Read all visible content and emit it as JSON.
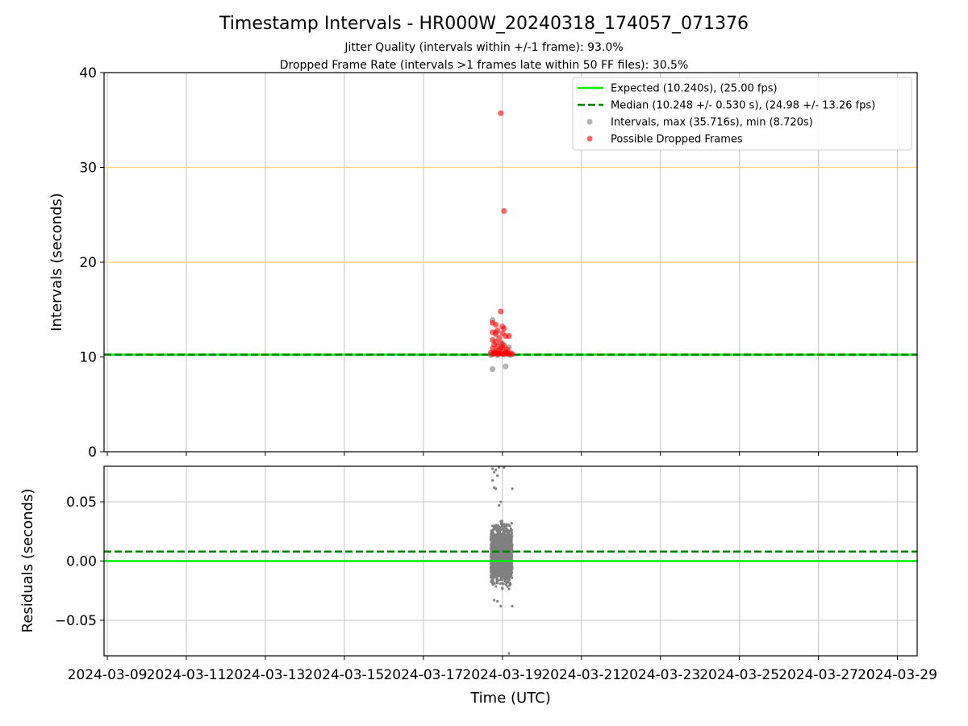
{
  "figure": {
    "title": "Timestamp Intervals - HR000W_20240318_174057_071376",
    "subtitle_1": "Jitter Quality (intervals within +/-1 frame): 93.0%",
    "subtitle_2": "Dropped Frame Rate (intervals >1 frames late within 50 FF files): 30.5%",
    "xlabel": "Time (UTC)"
  },
  "colors": {
    "expected": "#00ee00",
    "median": "#007f00",
    "intervals": "#808080",
    "dropped": "#ff0000",
    "threshold": "#ffd27f",
    "grid": "#cccccc",
    "axes": "#000000"
  },
  "chart_data": [
    {
      "type": "scatter",
      "panel": "intervals",
      "ylabel": "Intervals (seconds)",
      "xlim": [
        "2024-03-08T22:00",
        "2024-03-29T12:00"
      ],
      "ylim": [
        0,
        40
      ],
      "yticks": [
        0,
        10,
        20,
        30,
        40
      ],
      "xticks": [
        "2024-03-09",
        "2024-03-11",
        "2024-03-13",
        "2024-03-15",
        "2024-03-17",
        "2024-03-19",
        "2024-03-21",
        "2024-03-23",
        "2024-03-25",
        "2024-03-27",
        "2024-03-29"
      ],
      "grid": "vertical",
      "legend_position": "top-right",
      "hlines": [
        {
          "y": 10.24,
          "style": "solid",
          "name": "Expected (10.240s), (25.00 fps)"
        },
        {
          "y": 10.248,
          "style": "dashed",
          "name": "Median (10.248 +/- 0.530 s), (24.98 +/- 13.26 fps)"
        },
        {
          "y": 20,
          "style": "threshold"
        },
        {
          "y": 30,
          "style": "threshold"
        }
      ],
      "series": [
        {
          "name": "Intervals, max (35.716s), min (8.720s)",
          "points": [
            [
              "2024-03-18T18:00",
              8.72
            ],
            [
              "2024-03-19T02:00",
              9.0
            ],
            [
              "2024-03-18T18:00",
              13.9
            ],
            [
              "2024-03-18T20:00",
              12.6
            ],
            [
              "2024-03-19T00:00",
              11.4
            ],
            [
              "2024-03-19T04:00",
              11.0
            ],
            [
              "2024-03-18T19:00",
              10.5
            ],
            [
              "2024-03-19T03:00",
              10.3
            ],
            [
              "2024-03-18T21:00",
              10.2
            ],
            [
              "2024-03-19T05:00",
              10.2
            ],
            [
              "2024-03-18T17:00",
              10.2
            ],
            [
              "2024-03-19T01:00",
              10.25
            ]
          ]
        },
        {
          "name": "Possible Dropped Frames",
          "points": [
            [
              "2024-03-18T23:00",
              35.716
            ],
            [
              "2024-03-19T01:00",
              25.4
            ],
            [
              "2024-03-18T23:00",
              14.8
            ],
            [
              "2024-03-18T18:00",
              13.6
            ],
            [
              "2024-03-18T20:00",
              13.4
            ],
            [
              "2024-03-19T00:00",
              13.2
            ],
            [
              "2024-03-19T01:00",
              13.0
            ],
            [
              "2024-03-18T18:00",
              12.6
            ],
            [
              "2024-03-18T20:00",
              12.4
            ],
            [
              "2024-03-19T02:00",
              12.2
            ],
            [
              "2024-03-19T04:00",
              12.2
            ],
            [
              "2024-03-18T22:00",
              12.0
            ],
            [
              "2024-03-18T18:00",
              11.8
            ],
            [
              "2024-03-18T20:00",
              11.6
            ],
            [
              "2024-03-18T23:00",
              11.5
            ],
            [
              "2024-03-18T19:00",
              11.3
            ],
            [
              "2024-03-19T01:00",
              11.2
            ],
            [
              "2024-03-18T21:00",
              11.1
            ],
            [
              "2024-03-19T00:00",
              11.0
            ],
            [
              "2024-03-18T18:00",
              10.9
            ],
            [
              "2024-03-19T03:00",
              10.8
            ],
            [
              "2024-03-18T22:00",
              10.7
            ],
            [
              "2024-03-18T20:00",
              10.6
            ],
            [
              "2024-03-19T02:00",
              10.55
            ],
            [
              "2024-03-18T17:00",
              10.45
            ],
            [
              "2024-03-19T05:00",
              10.4
            ],
            [
              "2024-03-18T23:00",
              10.4
            ],
            [
              "2024-03-18T19:00",
              10.35
            ],
            [
              "2024-03-19T01:00",
              10.35
            ],
            [
              "2024-03-18T21:00",
              10.3
            ],
            [
              "2024-03-19T04:00",
              10.3
            ],
            [
              "2024-03-18T18:00",
              10.3
            ],
            [
              "2024-03-19T00:00",
              10.3
            ],
            [
              "2024-03-19T06:00",
              10.3
            ],
            [
              "2024-03-18T22:00",
              10.35
            ],
            [
              "2024-03-19T03:00",
              10.4
            ],
            [
              "2024-03-18T20:00",
              10.45
            ],
            [
              "2024-03-19T02:00",
              10.5
            ],
            [
              "2024-03-18T23:00",
              10.9
            ],
            [
              "2024-03-18T21:00",
              12.8
            ],
            [
              "2024-03-19T00:00",
              12.5
            ]
          ]
        }
      ]
    },
    {
      "type": "scatter",
      "panel": "residuals",
      "ylabel": "Residuals (seconds)",
      "xlim": [
        "2024-03-08T22:00",
        "2024-03-29T12:00"
      ],
      "ylim": [
        -0.08,
        0.08
      ],
      "yticks": [
        0.05,
        0.0,
        -0.05
      ],
      "ytick_labels": [
        "0.05",
        "0.00",
        "−0.05"
      ],
      "grid": "both",
      "hlines": [
        {
          "y": 0.0,
          "style": "solid",
          "name": "Expected"
        },
        {
          "y": 0.008,
          "style": "dashed",
          "name": "Median"
        }
      ],
      "cluster": {
        "x_range": [
          "2024-03-18T17:00",
          "2024-03-19T06:00"
        ],
        "y_core": [
          -0.028,
          0.038
        ],
        "count": 1600
      },
      "outliers": [
        [
          "2024-03-18T18:00",
          0.078
        ],
        [
          "2024-03-18T20:00",
          0.077
        ],
        [
          "2024-03-18T22:00",
          0.079
        ],
        [
          "2024-03-18T19:00",
          0.075
        ],
        [
          "2024-03-18T21:00",
          0.072
        ],
        [
          "2024-03-18T18:00",
          0.068
        ],
        [
          "2024-03-18T19:00",
          0.062
        ],
        [
          "2024-03-18T20:00",
          0.061
        ],
        [
          "2024-03-19T01:00",
          0.079
        ],
        [
          "2024-03-19T06:00",
          0.061
        ],
        [
          "2024-03-18T23:00",
          0.05
        ],
        [
          "2024-03-18T22:00",
          0.047
        ],
        [
          "2024-03-18T21:00",
          -0.034
        ],
        [
          "2024-03-18T23:00",
          -0.038
        ],
        [
          "2024-03-19T06:00",
          -0.038
        ],
        [
          "2024-03-18T19:00",
          -0.033
        ],
        [
          "2024-03-19T04:00",
          -0.078
        ]
      ]
    }
  ]
}
